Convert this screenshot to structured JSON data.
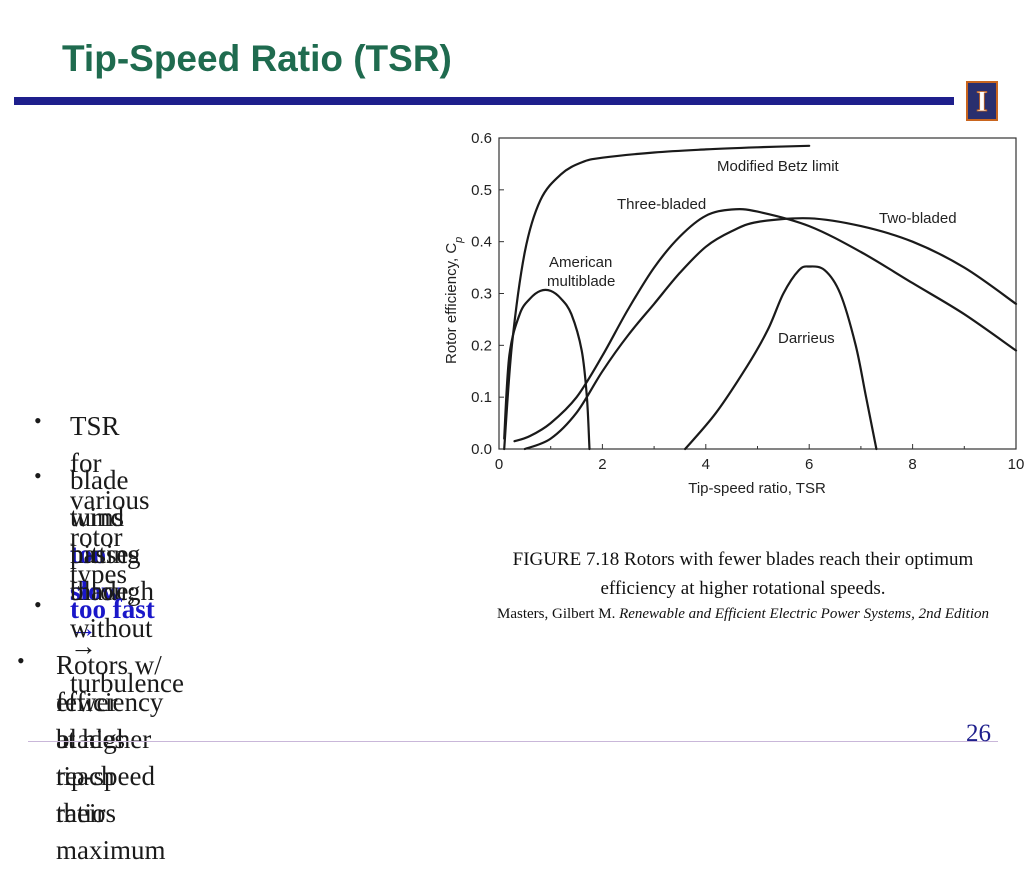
{
  "title": "Tip-Speed Ratio (TSR)",
  "logo_letter": "I",
  "colors": {
    "title": "#1f6b4f",
    "rule": "#1e1f8c",
    "highlight": "#1a17c9",
    "logo_bg": "#2a2f6e",
    "logo_border": "#c9651e"
  },
  "bullets": [
    {
      "text": "TSR for various rotor types"
    },
    {
      "pre": "blade turns ",
      "highlight": "too slow",
      "arrow": "→",
      "line2": "wind passes through without",
      "line3": "hitting blade;"
    },
    {
      "highlight": "too fast",
      "arrow": "→",
      "post": " turbulence"
    },
    {
      "line1": "Rotors w/ fewer blades reach their maximum",
      "line2": "efficiency at higher tip-speed ratios"
    }
  ],
  "bullet_glyph": "•",
  "chart_data": {
    "type": "line",
    "xlabel": "Tip-speed ratio, TSR",
    "ylabel": "Rotor efficiency, C",
    "ylabel_sub": "p",
    "xlim": [
      0,
      10
    ],
    "ylim": [
      0,
      0.6
    ],
    "x_ticks": [
      "0",
      "2",
      "4",
      "6",
      "8",
      "10"
    ],
    "y_ticks": [
      "0.0",
      "0.1",
      "0.2",
      "0.3",
      "0.4",
      "0.5",
      "0.6"
    ],
    "series": [
      {
        "name": "Modified Betz limit",
        "x": [
          0.1,
          0.25,
          0.5,
          0.8,
          1.2,
          1.6,
          2.0,
          3.0,
          4.0,
          5.0,
          6.0
        ],
        "y": [
          0.0,
          0.2,
          0.38,
          0.48,
          0.53,
          0.553,
          0.562,
          0.572,
          0.578,
          0.582,
          0.585
        ]
      },
      {
        "name": "American multiblade",
        "x": [
          0.1,
          0.2,
          0.4,
          0.6,
          0.8,
          1.0,
          1.2,
          1.4,
          1.6,
          1.7,
          1.75
        ],
        "y": [
          0.02,
          0.18,
          0.26,
          0.29,
          0.305,
          0.305,
          0.29,
          0.26,
          0.19,
          0.1,
          0.0
        ]
      },
      {
        "name": "Three-bladed",
        "x": [
          0.3,
          0.6,
          1.0,
          1.5,
          2.0,
          2.5,
          3.0,
          3.5,
          4.0,
          4.5,
          5.0,
          6.0,
          7.0,
          8.0,
          9.0,
          10.0
        ],
        "y": [
          0.015,
          0.025,
          0.05,
          0.1,
          0.18,
          0.27,
          0.35,
          0.41,
          0.45,
          0.462,
          0.458,
          0.43,
          0.38,
          0.32,
          0.26,
          0.19
        ]
      },
      {
        "name": "Two-bladed",
        "x": [
          0.5,
          1.0,
          1.5,
          2.0,
          2.5,
          3.0,
          3.5,
          4.0,
          4.5,
          5.0,
          6.0,
          7.0,
          8.0,
          9.0,
          10.0
        ],
        "y": [
          0.0,
          0.02,
          0.07,
          0.15,
          0.22,
          0.28,
          0.34,
          0.39,
          0.42,
          0.438,
          0.445,
          0.43,
          0.4,
          0.35,
          0.28
        ]
      },
      {
        "name": "Darrieus",
        "x": [
          3.6,
          4.2,
          4.8,
          5.2,
          5.5,
          5.8,
          6.0,
          6.3,
          6.6,
          6.9,
          7.1,
          7.3
        ],
        "y": [
          0.0,
          0.07,
          0.16,
          0.23,
          0.3,
          0.345,
          0.352,
          0.345,
          0.3,
          0.2,
          0.1,
          0.0
        ]
      }
    ],
    "labels": {
      "betz": "Modified Betz limit",
      "three": "Three-bladed",
      "two": "Two-bladed",
      "american_1": "American",
      "american_2": "multiblade",
      "darrieus": "Darrieus"
    }
  },
  "caption": {
    "figure": "FIGURE 7.18 Rotors with fewer blades reach their optimum efficiency at higher rotational speeds.",
    "cite_author": "Masters, Gilbert M. ",
    "cite_title": "Renewable and Efficient Electric Power Systems, 2nd Edition"
  },
  "page_number": "26"
}
